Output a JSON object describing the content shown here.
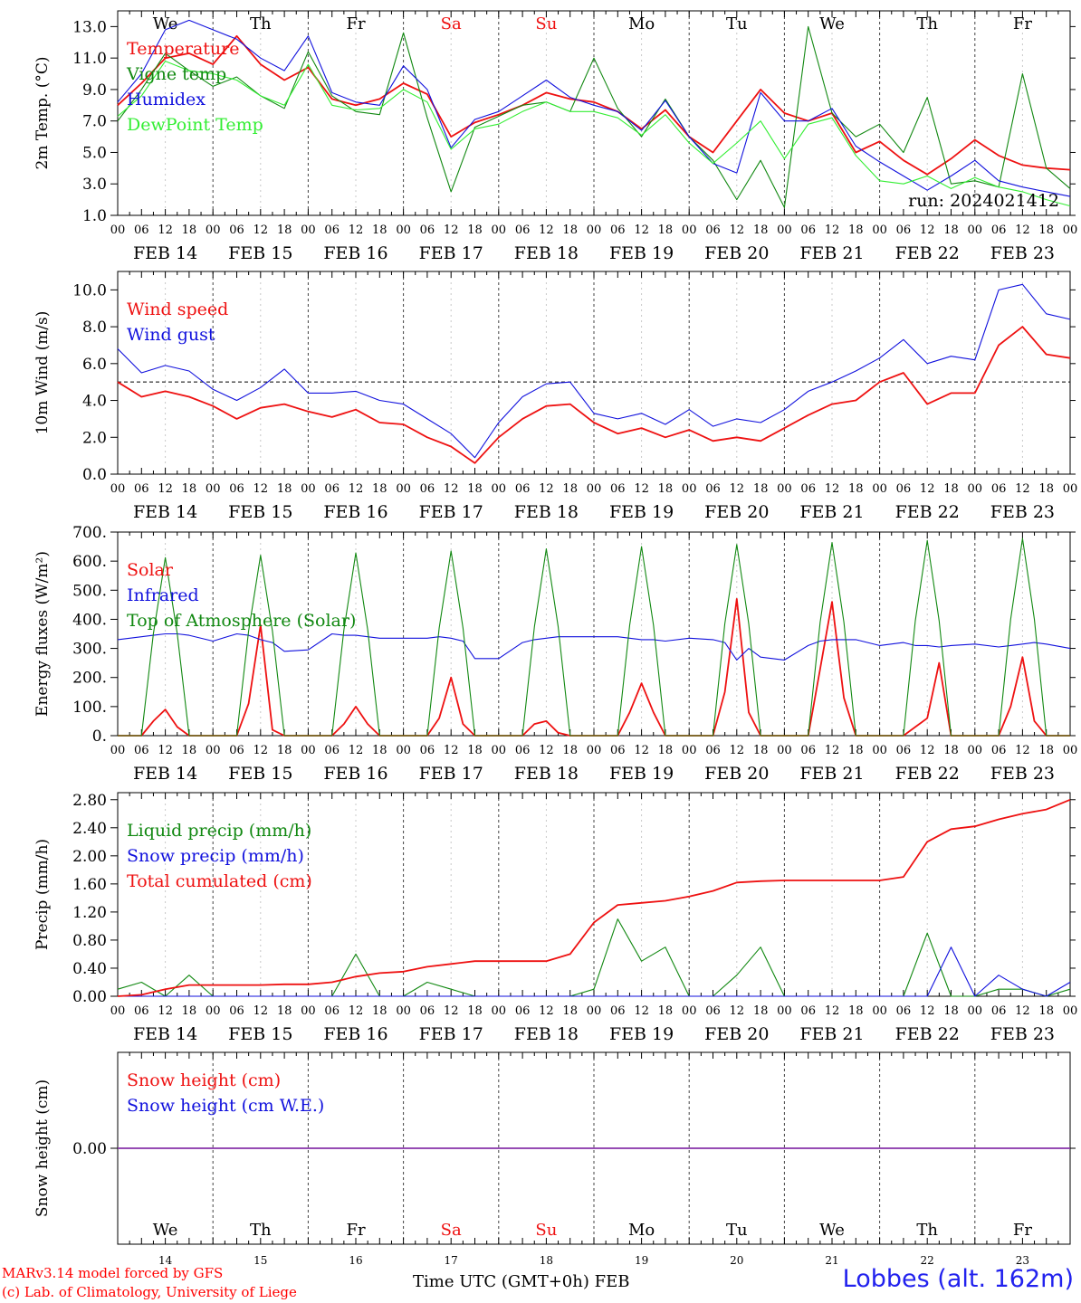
{
  "footer": {
    "credit_line1": "MARv3.14 model forced by GFS",
    "credit_line2": "(c) Lab. of Climatology, University of Liege",
    "x_title": "Time UTC (GMT+0h) FEB",
    "station": "Lobbes (alt. 162m)"
  },
  "colors": {
    "red": "#ee1111",
    "green": "#118811",
    "blue": "#1111dd",
    "lightgreen": "#33ee33",
    "purple": "#8833aa",
    "weekend": "#ee1111"
  },
  "chart_data": [
    {
      "type": "line",
      "ylabel": "2m Temp. (°C)",
      "ylim": [
        1.0,
        14.0
      ],
      "yticks": [
        "1.0",
        "3.0",
        "5.0",
        "7.0",
        "9.0",
        "11.0",
        "13.0"
      ],
      "days": [
        "We",
        "Th",
        "Fr",
        "Sa",
        "Su",
        "Mo",
        "Tu",
        "We",
        "Th",
        "Fr"
      ],
      "hour_ticks": [
        "00",
        "06",
        "12",
        "18"
      ],
      "date_labels": [
        "FEB 14",
        "FEB 15",
        "FEB 16",
        "FEB 17",
        "FEB 18",
        "FEB 19",
        "FEB 20",
        "FEB 21",
        "FEB 22",
        "FEB 23"
      ],
      "annotation": "run: 2024021412",
      "x_hours": [
        0,
        6,
        12,
        18,
        24,
        30,
        36,
        42,
        48,
        54,
        60,
        66,
        72,
        78,
        84,
        90,
        96,
        102,
        108,
        114,
        120,
        126,
        132,
        138,
        144,
        150,
        156,
        162,
        168,
        174,
        180,
        186,
        192,
        198,
        204,
        210,
        216,
        222,
        228,
        234,
        240
      ],
      "series": [
        {
          "name": "Temperature",
          "color": "red",
          "values": [
            8.0,
            9.4,
            11.0,
            11.3,
            10.6,
            12.4,
            10.6,
            9.6,
            10.4,
            8.4,
            8.0,
            8.4,
            9.4,
            8.7,
            6.0,
            6.9,
            7.4,
            8.0,
            8.8,
            8.4,
            8.2,
            7.6,
            6.5,
            7.7,
            6.0,
            5.0,
            7.0,
            9.0,
            7.5,
            7.0,
            7.5,
            5.0,
            5.7,
            4.5,
            3.6,
            4.6,
            5.8,
            4.8,
            4.2,
            4.0,
            3.9
          ]
        },
        {
          "name": "Vigne temp",
          "color": "green",
          "values": [
            7.0,
            9.0,
            11.3,
            10.2,
            9.2,
            9.8,
            8.6,
            7.8,
            11.4,
            8.6,
            7.6,
            7.4,
            12.6,
            7.2,
            2.5,
            6.6,
            7.3,
            8.0,
            8.2,
            7.6,
            11.0,
            7.8,
            6.0,
            8.4,
            6.0,
            4.5,
            2.0,
            4.5,
            1.5,
            13.0,
            7.5,
            6.0,
            6.8,
            5.0,
            8.5,
            3.0,
            3.2,
            2.8,
            10.0,
            4.0,
            2.7
          ]
        },
        {
          "name": "Humidex",
          "color": "blue",
          "values": [
            8.2,
            10.0,
            12.8,
            13.4,
            12.8,
            12.2,
            11.0,
            10.2,
            12.4,
            8.8,
            8.2,
            8.0,
            10.5,
            9.0,
            5.3,
            7.1,
            7.6,
            8.6,
            9.6,
            8.5,
            8.0,
            7.6,
            6.4,
            8.3,
            6.0,
            4.3,
            3.7,
            8.8,
            7.0,
            7.0,
            7.8,
            5.4,
            4.4,
            3.5,
            2.6,
            3.5,
            4.5,
            3.2,
            2.8,
            2.5,
            2.2
          ]
        },
        {
          "name": "DewPoint Temp",
          "color": "lightgreen",
          "values": [
            7.3,
            8.6,
            10.8,
            10.2,
            10.0,
            9.6,
            8.6,
            8.0,
            10.6,
            8.0,
            7.7,
            7.8,
            9.0,
            8.2,
            5.2,
            6.5,
            6.8,
            7.6,
            8.2,
            7.6,
            7.6,
            7.2,
            6.1,
            7.4,
            5.6,
            4.3,
            5.6,
            7.0,
            4.6,
            6.8,
            7.2,
            4.8,
            3.2,
            3.0,
            3.5,
            2.7,
            3.4,
            2.8,
            2.5,
            2.0,
            1.6
          ]
        }
      ]
    },
    {
      "type": "line",
      "ylabel": "10m Wind (m/s)",
      "ylim": [
        0.0,
        11.0
      ],
      "yticks": [
        "0.0",
        "2.0",
        "4.0",
        "6.0",
        "8.0",
        "10.0"
      ],
      "reference_line": 5.0,
      "hour_ticks": [
        "00",
        "06",
        "12",
        "18"
      ],
      "date_labels": [
        "FEB 14",
        "FEB 15",
        "FEB 16",
        "FEB 17",
        "FEB 18",
        "FEB 19",
        "FEB 20",
        "FEB 21",
        "FEB 22",
        "FEB 23"
      ],
      "x_hours": [
        0,
        6,
        12,
        18,
        24,
        30,
        36,
        42,
        48,
        54,
        60,
        66,
        72,
        78,
        84,
        90,
        96,
        102,
        108,
        114,
        120,
        126,
        132,
        138,
        144,
        150,
        156,
        162,
        168,
        174,
        180,
        186,
        192,
        198,
        204,
        210,
        216,
        222,
        228,
        234,
        240
      ],
      "series": [
        {
          "name": "Wind speed",
          "color": "red",
          "values": [
            5.0,
            4.2,
            4.5,
            4.2,
            3.7,
            3.0,
            3.6,
            3.8,
            3.4,
            3.1,
            3.5,
            2.8,
            2.7,
            2.0,
            1.5,
            0.6,
            2.0,
            3.0,
            3.7,
            3.8,
            2.8,
            2.2,
            2.5,
            2.0,
            2.4,
            1.8,
            2.0,
            1.8,
            2.5,
            3.2,
            3.8,
            4.0,
            5.0,
            5.5,
            3.8,
            4.4,
            4.4,
            7.0,
            8.0,
            6.5,
            6.3
          ]
        },
        {
          "name": "Wind gust",
          "color": "blue",
          "values": [
            6.8,
            5.5,
            5.9,
            5.6,
            4.6,
            4.0,
            4.7,
            5.7,
            4.4,
            4.4,
            4.5,
            4.0,
            3.8,
            3.0,
            2.2,
            0.9,
            2.8,
            4.2,
            4.9,
            5.0,
            3.3,
            3.0,
            3.3,
            2.7,
            3.5,
            2.6,
            3.0,
            2.8,
            3.5,
            4.5,
            5.0,
            5.6,
            6.3,
            7.3,
            6.0,
            6.4,
            6.2,
            10.0,
            10.3,
            8.7,
            8.4
          ]
        }
      ]
    },
    {
      "type": "line",
      "ylabel": "Energy fluxes (W/m²)",
      "ylim": [
        0,
        700
      ],
      "yticks": [
        "0.",
        "100.",
        "200.",
        "300.",
        "400.",
        "500.",
        "600.",
        "700."
      ],
      "hour_ticks": [
        "00",
        "06",
        "12",
        "18"
      ],
      "date_labels": [
        "FEB 14",
        "FEB 15",
        "FEB 16",
        "FEB 17",
        "FEB 18",
        "FEB 19",
        "FEB 20",
        "FEB 21",
        "FEB 22",
        "FEB 23"
      ],
      "x_hours": [
        0,
        6,
        9,
        12,
        15,
        18,
        24,
        30,
        33,
        36,
        39,
        42,
        48,
        54,
        57,
        60,
        63,
        66,
        72,
        78,
        81,
        84,
        87,
        90,
        96,
        102,
        105,
        108,
        111,
        114,
        120,
        126,
        129,
        132,
        135,
        138,
        144,
        150,
        153,
        156,
        159,
        162,
        168,
        174,
        177,
        180,
        183,
        186,
        192,
        198,
        201,
        204,
        207,
        210,
        216,
        222,
        225,
        228,
        231,
        234,
        240
      ],
      "series": [
        {
          "name": "Solar",
          "color": "red",
          "values": [
            0,
            0,
            50,
            90,
            30,
            0,
            0,
            0,
            110,
            380,
            20,
            0,
            0,
            0,
            40,
            100,
            40,
            0,
            0,
            0,
            60,
            200,
            40,
            0,
            0,
            0,
            40,
            50,
            10,
            0,
            0,
            0,
            80,
            180,
            80,
            0,
            0,
            0,
            150,
            470,
            80,
            0,
            0,
            0,
            230,
            460,
            130,
            0,
            0,
            0,
            30,
            60,
            250,
            0,
            0,
            0,
            100,
            270,
            50,
            0,
            0
          ]
        },
        {
          "name": "Infrared",
          "color": "blue",
          "values": [
            330,
            340,
            345,
            350,
            350,
            345,
            325,
            350,
            345,
            330,
            320,
            290,
            295,
            350,
            345,
            345,
            340,
            335,
            335,
            335,
            340,
            335,
            325,
            265,
            265,
            320,
            330,
            335,
            340,
            340,
            340,
            340,
            335,
            330,
            330,
            325,
            335,
            330,
            320,
            260,
            300,
            270,
            260,
            310,
            325,
            330,
            330,
            330,
            310,
            320,
            310,
            310,
            305,
            310,
            315,
            305,
            310,
            315,
            320,
            315,
            300
          ]
        },
        {
          "name": "Top of Atmosphere (Solar)",
          "color": "green",
          "values": [
            0,
            0,
            350,
            612,
            350,
            0,
            0,
            0,
            360,
            620,
            360,
            0,
            0,
            0,
            365,
            628,
            365,
            0,
            0,
            0,
            370,
            635,
            370,
            0,
            0,
            0,
            375,
            642,
            375,
            0,
            0,
            0,
            380,
            650,
            380,
            0,
            0,
            0,
            385,
            657,
            385,
            0,
            0,
            0,
            390,
            664,
            390,
            0,
            0,
            0,
            395,
            671,
            395,
            0,
            0,
            0,
            400,
            678,
            400,
            0,
            0
          ]
        }
      ]
    },
    {
      "type": "line",
      "ylabel": "Precip (mm/h)",
      "ylim": [
        0.0,
        2.9
      ],
      "yticks": [
        "0.00",
        "0.40",
        "0.80",
        "1.20",
        "1.60",
        "2.00",
        "2.40",
        "2.80"
      ],
      "hour_ticks": [
        "00",
        "06",
        "12",
        "18"
      ],
      "date_labels": [
        "FEB 14",
        "FEB 15",
        "FEB 16",
        "FEB 17",
        "FEB 18",
        "FEB 19",
        "FEB 20",
        "FEB 21",
        "FEB 22",
        "FEB 23"
      ],
      "x_hours": [
        0,
        6,
        12,
        18,
        24,
        30,
        36,
        42,
        48,
        54,
        60,
        66,
        72,
        78,
        84,
        90,
        96,
        102,
        108,
        114,
        120,
        126,
        132,
        138,
        144,
        150,
        156,
        162,
        168,
        174,
        180,
        186,
        192,
        198,
        204,
        210,
        216,
        222,
        228,
        234,
        240
      ],
      "series": [
        {
          "name": "Liquid precip (mm/h)",
          "color": "green",
          "values": [
            0.1,
            0.2,
            0.0,
            0.3,
            0.0,
            0.0,
            0.0,
            0.0,
            0.0,
            0.0,
            0.6,
            0.0,
            0.0,
            0.2,
            0.1,
            0.0,
            0.0,
            0.0,
            0.0,
            0.0,
            0.1,
            1.1,
            0.5,
            0.7,
            0.0,
            0.0,
            0.3,
            0.7,
            0.0,
            0.0,
            0.0,
            0.0,
            0.0,
            0.0,
            0.9,
            0.0,
            0.0,
            0.1,
            0.1,
            0.0,
            0.1
          ]
        },
        {
          "name": "Snow precip (mm/h)",
          "color": "blue",
          "values": [
            0,
            0,
            0,
            0,
            0,
            0,
            0,
            0,
            0,
            0,
            0,
            0,
            0,
            0,
            0,
            0,
            0,
            0,
            0,
            0,
            0,
            0,
            0,
            0,
            0,
            0,
            0,
            0,
            0,
            0,
            0,
            0,
            0,
            0,
            0,
            0.7,
            0,
            0.3,
            0.1,
            0,
            0.2
          ]
        },
        {
          "name": "Total cumulated (cm)",
          "color": "red",
          "values": [
            0.0,
            0.02,
            0.1,
            0.16,
            0.16,
            0.16,
            0.16,
            0.17,
            0.17,
            0.2,
            0.28,
            0.33,
            0.35,
            0.42,
            0.46,
            0.5,
            0.5,
            0.5,
            0.5,
            0.6,
            1.05,
            1.3,
            1.33,
            1.36,
            1.42,
            1.5,
            1.62,
            1.64,
            1.65,
            1.65,
            1.65,
            1.65,
            1.65,
            1.7,
            2.2,
            2.38,
            2.42,
            2.52,
            2.6,
            2.66,
            2.8
          ]
        }
      ]
    },
    {
      "type": "line",
      "ylabel": "Snow height (cm)",
      "ylim": [
        -1.0,
        1.0
      ],
      "yticks": [
        "0.00"
      ],
      "days": [
        "We",
        "Th",
        "Fr",
        "Sa",
        "Su",
        "Mo",
        "Tu",
        "We",
        "Th",
        "Fr"
      ],
      "day_numbers": [
        "14",
        "15",
        "16",
        "17",
        "18",
        "19",
        "20",
        "21",
        "22",
        "23"
      ],
      "x_hours": [
        0,
        240
      ],
      "series": [
        {
          "name": "Snow height (cm)",
          "color": "red",
          "values": [
            0.0,
            0.0
          ]
        },
        {
          "name": "Snow height (cm W.E.)",
          "color": "blue",
          "values": [
            0.0,
            0.0
          ]
        }
      ]
    }
  ]
}
